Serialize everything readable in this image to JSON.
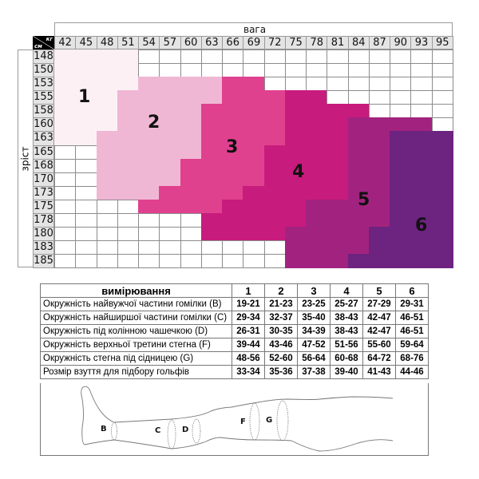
{
  "size_chart": {
    "weight_label": "вага",
    "height_label": "зріст",
    "corner_top": "кг",
    "corner_bottom": "см",
    "weights": [
      "42",
      "45",
      "48",
      "51",
      "54",
      "57",
      "60",
      "63",
      "66",
      "69",
      "72",
      "75",
      "78",
      "81",
      "84",
      "87",
      "90",
      "93",
      "95"
    ],
    "heights": [
      "148",
      "150",
      "153",
      "155",
      "158",
      "160",
      "163",
      "165",
      "168",
      "170",
      "173",
      "175",
      "178",
      "180",
      "183",
      "185"
    ],
    "zone_colors": {
      "1": "#fdf0f4",
      "2": "#f0b7d4",
      "3": "#e0418e",
      "4": "#c81b7e",
      "5": "#a2237f",
      "6": "#6d2380"
    },
    "zone_labels": [
      "1",
      "2",
      "3",
      "4",
      "5",
      "6"
    ],
    "grid": [
      [
        1,
        1,
        1,
        1,
        0,
        0,
        0,
        0,
        0,
        0,
        0,
        0,
        0,
        0,
        0,
        0,
        0,
        0,
        0
      ],
      [
        1,
        1,
        1,
        1,
        0,
        0,
        0,
        0,
        0,
        0,
        0,
        0,
        0,
        0,
        0,
        0,
        0,
        0,
        0
      ],
      [
        1,
        1,
        1,
        1,
        2,
        2,
        2,
        2,
        3,
        3,
        0,
        0,
        0,
        0,
        0,
        0,
        0,
        0,
        0
      ],
      [
        1,
        1,
        1,
        2,
        2,
        2,
        2,
        2,
        3,
        3,
        3,
        4,
        4,
        0,
        0,
        0,
        0,
        0,
        0
      ],
      [
        1,
        1,
        1,
        2,
        2,
        2,
        2,
        3,
        3,
        3,
        3,
        4,
        4,
        4,
        4,
        0,
        0,
        0,
        0
      ],
      [
        1,
        1,
        1,
        2,
        2,
        2,
        2,
        3,
        3,
        3,
        3,
        4,
        4,
        4,
        5,
        5,
        5,
        5,
        0
      ],
      [
        1,
        1,
        2,
        2,
        2,
        2,
        2,
        3,
        3,
        3,
        3,
        4,
        4,
        4,
        5,
        5,
        6,
        6,
        6
      ],
      [
        0,
        0,
        2,
        2,
        2,
        2,
        2,
        3,
        3,
        3,
        4,
        4,
        4,
        4,
        5,
        5,
        6,
        6,
        6
      ],
      [
        0,
        0,
        2,
        2,
        2,
        2,
        3,
        3,
        3,
        3,
        4,
        4,
        4,
        4,
        5,
        5,
        6,
        6,
        6
      ],
      [
        0,
        0,
        2,
        2,
        2,
        2,
        3,
        3,
        3,
        3,
        4,
        4,
        4,
        4,
        5,
        5,
        6,
        6,
        6
      ],
      [
        0,
        0,
        2,
        2,
        2,
        3,
        3,
        3,
        3,
        4,
        4,
        4,
        4,
        4,
        5,
        5,
        6,
        6,
        6
      ],
      [
        0,
        0,
        0,
        0,
        3,
        3,
        3,
        3,
        4,
        4,
        4,
        4,
        5,
        5,
        5,
        5,
        6,
        6,
        6
      ],
      [
        0,
        0,
        0,
        0,
        0,
        0,
        0,
        4,
        4,
        4,
        4,
        4,
        5,
        5,
        5,
        5,
        6,
        6,
        6
      ],
      [
        0,
        0,
        0,
        0,
        0,
        0,
        0,
        4,
        4,
        4,
        4,
        5,
        5,
        5,
        5,
        6,
        6,
        6,
        6
      ],
      [
        0,
        0,
        0,
        0,
        0,
        0,
        0,
        0,
        0,
        0,
        0,
        5,
        5,
        5,
        5,
        6,
        6,
        6,
        6
      ],
      [
        0,
        0,
        0,
        0,
        0,
        0,
        0,
        0,
        0,
        0,
        0,
        5,
        5,
        5,
        6,
        6,
        6,
        6,
        6
      ]
    ]
  },
  "measurements": {
    "header": "вимірювання",
    "sizes": [
      "1",
      "2",
      "3",
      "4",
      "5",
      "6"
    ],
    "rows": [
      {
        "label": "Окружність найвужчої частини гомілки (B)",
        "values": [
          "19-21",
          "21-23",
          "23-25",
          "25-27",
          "27-29",
          "29-31"
        ]
      },
      {
        "label": "Окружність найширшої частини гомілки (C)",
        "values": [
          "29-34",
          "32-37",
          "35-40",
          "38-43",
          "42-47",
          "46-51"
        ]
      },
      {
        "label": "Окружність під колінною чашечкою (D)",
        "values": [
          "26-31",
          "30-35",
          "34-39",
          "38-43",
          "42-47",
          "46-51"
        ]
      },
      {
        "label": "Окружність верхньої третини стегна (F)",
        "values": [
          "39-44",
          "43-46",
          "47-52",
          "51-56",
          "55-60",
          "59-64"
        ]
      },
      {
        "label": "Окружність стегна під сідницею (G)",
        "values": [
          "48-56",
          "52-60",
          "56-64",
          "60-68",
          "64-72",
          "68-76"
        ]
      },
      {
        "label": "Розмір взуття для підбору гольфів",
        "values": [
          "33-34",
          "35-36",
          "37-38",
          "39-40",
          "41-43",
          "44-46"
        ]
      }
    ]
  },
  "leg_diagram": {
    "points": [
      "B",
      "C",
      "D",
      "F",
      "G"
    ]
  }
}
